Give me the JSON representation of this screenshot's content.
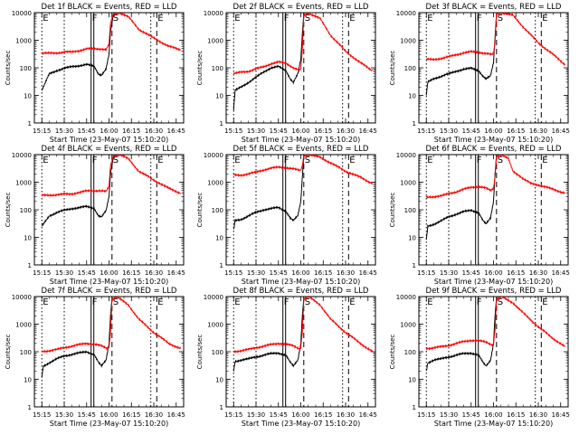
{
  "common": {
    "xlabel": "Start Time (23-May-07 15:10:20)",
    "ylabel": "Counts/sec",
    "x_ticks": [
      "15:15",
      "15:30",
      "15:45",
      "16:00",
      "16:15",
      "16:30",
      "16:45"
    ],
    "x_tick_minutes": [
      0,
      15,
      30,
      45,
      60,
      75,
      90
    ],
    "x_range_minutes": [
      -5,
      95
    ],
    "y_ticks": [
      "1",
      "10",
      "100",
      "1000",
      "10000"
    ],
    "y_scale": "log",
    "y_range": [
      1,
      10000
    ],
    "colors": {
      "events": "#000000",
      "lld": "#ff0000"
    }
  },
  "chart_data": [
    {
      "type": "line",
      "title": "Det 1f BLACK = Events, RED = LLD",
      "markers": [
        {
          "label": "E",
          "minute": 0
        },
        {
          "label": "F",
          "minute": 33
        },
        {
          "label": "S",
          "minute": 47
        },
        {
          "label": "E",
          "minute": 77
        }
      ],
      "series": [
        {
          "name": "Events",
          "color": "#000000",
          "x": [
            0,
            5,
            10,
            15,
            20,
            25,
            30,
            35,
            38,
            40,
            43,
            45,
            46,
            48,
            52
          ],
          "y": [
            15,
            60,
            80,
            95,
            110,
            120,
            130,
            115,
            60,
            55,
            90,
            300,
            2000,
            9000,
            10000
          ]
        },
        {
          "name": "LLD",
          "color": "#ff0000",
          "x": [
            0,
            10,
            20,
            25,
            30,
            35,
            40,
            43,
            45,
            46,
            48,
            52,
            58,
            65,
            75,
            85,
            93
          ],
          "y": [
            330,
            350,
            380,
            420,
            480,
            500,
            480,
            450,
            700,
            4000,
            9000,
            10000,
            7000,
            2500,
            1200,
            600,
            450
          ]
        }
      ]
    },
    {
      "type": "line",
      "title": "Det 2f BLACK = Events, RED = LLD",
      "markers": [
        {
          "label": "E",
          "minute": 0
        },
        {
          "label": "F",
          "minute": 33
        },
        {
          "label": "S",
          "minute": 47
        },
        {
          "label": "E",
          "minute": 77
        }
      ],
      "series": [
        {
          "name": "Events",
          "color": "#000000",
          "x": [
            0,
            1,
            5,
            10,
            15,
            20,
            25,
            30,
            35,
            38,
            40,
            43,
            45,
            46,
            47
          ],
          "y": [
            3,
            15,
            20,
            30,
            45,
            70,
            100,
            110,
            80,
            40,
            30,
            60,
            200,
            1500,
            9000
          ]
        },
        {
          "name": "LLD",
          "color": "#ff0000",
          "x": [
            0,
            5,
            10,
            15,
            20,
            25,
            30,
            35,
            40,
            44,
            45,
            46,
            47,
            50,
            58,
            65,
            75,
            85,
            93
          ],
          "y": [
            60,
            70,
            75,
            90,
            110,
            140,
            160,
            150,
            100,
            80,
            90,
            400,
            8000,
            10000,
            6000,
            1500,
            400,
            150,
            80
          ]
        }
      ]
    },
    {
      "type": "line",
      "title": "Det 3f BLACK = Events, RED = LLD",
      "markers": [
        {
          "label": "E",
          "minute": 0
        },
        {
          "label": "F",
          "minute": 33
        },
        {
          "label": "S",
          "minute": 47
        },
        {
          "label": "E",
          "minute": 77
        }
      ],
      "series": [
        {
          "name": "Events",
          "color": "#000000",
          "x": [
            0,
            1,
            5,
            10,
            15,
            20,
            25,
            30,
            35,
            38,
            40,
            43,
            45,
            46,
            47
          ],
          "y": [
            10,
            30,
            40,
            50,
            60,
            75,
            90,
            95,
            80,
            50,
            40,
            50,
            150,
            1200,
            9000
          ]
        },
        {
          "name": "LLD",
          "color": "#ff0000",
          "x": [
            0,
            5,
            10,
            15,
            20,
            25,
            30,
            35,
            40,
            44,
            45,
            46,
            47,
            50,
            58,
            65,
            75,
            85,
            93
          ],
          "y": [
            200,
            200,
            220,
            250,
            300,
            350,
            380,
            370,
            330,
            300,
            320,
            800,
            9000,
            10000,
            8000,
            3000,
            800,
            300,
            130
          ]
        }
      ]
    },
    {
      "type": "line",
      "title": "Det 4f BLACK = Events, RED = LLD",
      "markers": [
        {
          "label": "E",
          "minute": 0
        },
        {
          "label": "F",
          "minute": 33
        },
        {
          "label": "S",
          "minute": 47
        },
        {
          "label": "E",
          "minute": 77
        }
      ],
      "series": [
        {
          "name": "Events",
          "color": "#000000",
          "x": [
            0,
            5,
            10,
            15,
            20,
            25,
            30,
            35,
            38,
            40,
            43,
            45,
            46,
            48,
            52
          ],
          "y": [
            25,
            60,
            80,
            95,
            110,
            120,
            130,
            115,
            60,
            55,
            90,
            300,
            2000,
            9000,
            10000
          ]
        },
        {
          "name": "LLD",
          "color": "#ff0000",
          "x": [
            0,
            10,
            20,
            25,
            30,
            35,
            40,
            43,
            45,
            46,
            48,
            52,
            58,
            65,
            75,
            85,
            93
          ],
          "y": [
            330,
            350,
            380,
            420,
            480,
            500,
            480,
            450,
            700,
            4000,
            9000,
            10000,
            7000,
            2500,
            1200,
            600,
            400
          ]
        }
      ]
    },
    {
      "type": "line",
      "title": "Det 5f BLACK = Events, RED = LLD",
      "markers": [
        {
          "label": "E",
          "minute": 0
        },
        {
          "label": "F",
          "minute": 33
        },
        {
          "label": "S",
          "minute": 47
        },
        {
          "label": "E",
          "minute": 77
        }
      ],
      "series": [
        {
          "name": "Events",
          "color": "#000000",
          "x": [
            0,
            1,
            5,
            10,
            15,
            20,
            25,
            30,
            35,
            38,
            40,
            43,
            45,
            46,
            47
          ],
          "y": [
            18,
            40,
            45,
            60,
            80,
            100,
            110,
            120,
            90,
            50,
            40,
            60,
            200,
            1500,
            9000
          ]
        },
        {
          "name": "LLD",
          "color": "#ff0000",
          "x": [
            0,
            5,
            10,
            15,
            20,
            25,
            30,
            35,
            40,
            44,
            45,
            46,
            47,
            50,
            58,
            65,
            75,
            85,
            93
          ],
          "y": [
            1800,
            1800,
            2000,
            2300,
            2800,
            3200,
            3500,
            3400,
            3000,
            2700,
            2800,
            4000,
            9000,
            10000,
            8000,
            5000,
            2500,
            1500,
            900
          ]
        }
      ]
    },
    {
      "type": "line",
      "title": "Det 6f BLACK = Events, RED = LLD",
      "markers": [
        {
          "label": "E",
          "minute": 0
        },
        {
          "label": "F",
          "minute": 33
        },
        {
          "label": "S",
          "minute": 47
        },
        {
          "label": "E",
          "minute": 77
        }
      ],
      "series": [
        {
          "name": "Events",
          "color": "#000000",
          "x": [
            0,
            1,
            5,
            10,
            15,
            20,
            25,
            30,
            35,
            38,
            40,
            43,
            45,
            46,
            47
          ],
          "y": [
            8,
            25,
            30,
            40,
            55,
            70,
            85,
            95,
            80,
            40,
            30,
            50,
            200,
            2000,
            9000
          ]
        },
        {
          "name": "LLD",
          "color": "#ff0000",
          "x": [
            0,
            5,
            10,
            15,
            20,
            25,
            30,
            35,
            40,
            43,
            45,
            46,
            47,
            50,
            55,
            58,
            62,
            65,
            70,
            75,
            85,
            93
          ],
          "y": [
            280,
            300,
            320,
            380,
            450,
            550,
            650,
            700,
            600,
            500,
            600,
            1500,
            9000,
            10000,
            7000,
            2500,
            1800,
            1300,
            900,
            800,
            550,
            400
          ]
        }
      ]
    },
    {
      "type": "line",
      "title": "Det 7f BLACK = Events, RED = LLD",
      "markers": [
        {
          "label": "E",
          "minute": 0
        },
        {
          "label": "F",
          "minute": 33
        },
        {
          "label": "S",
          "minute": 47
        },
        {
          "label": "E",
          "minute": 77
        }
      ],
      "series": [
        {
          "name": "Events",
          "color": "#000000",
          "x": [
            0,
            1,
            5,
            10,
            15,
            20,
            25,
            30,
            35,
            38,
            40,
            43,
            45,
            46,
            47
          ],
          "y": [
            12,
            30,
            40,
            55,
            70,
            80,
            90,
            100,
            80,
            40,
            30,
            50,
            200,
            2000,
            9000
          ]
        },
        {
          "name": "LLD",
          "color": "#ff0000",
          "x": [
            0,
            5,
            10,
            15,
            20,
            25,
            30,
            35,
            40,
            44,
            45,
            46,
            47,
            50,
            58,
            65,
            75,
            85,
            93
          ],
          "y": [
            100,
            110,
            120,
            140,
            160,
            180,
            200,
            190,
            160,
            130,
            150,
            500,
            8000,
            10000,
            5000,
            1500,
            500,
            200,
            130
          ]
        }
      ]
    },
    {
      "type": "line",
      "title": "Det 8f BLACK = Events, RED = LLD",
      "markers": [
        {
          "label": "E",
          "minute": 0
        },
        {
          "label": "F",
          "minute": 33
        },
        {
          "label": "S",
          "minute": 47
        },
        {
          "label": "E",
          "minute": 77
        }
      ],
      "series": [
        {
          "name": "Events",
          "color": "#000000",
          "x": [
            0,
            1,
            5,
            10,
            15,
            20,
            25,
            30,
            35,
            38,
            40,
            43,
            45,
            46,
            47
          ],
          "y": [
            20,
            45,
            50,
            55,
            65,
            75,
            85,
            90,
            75,
            40,
            30,
            50,
            200,
            2000,
            9000
          ]
        },
        {
          "name": "LLD",
          "color": "#ff0000",
          "x": [
            0,
            5,
            10,
            15,
            20,
            25,
            30,
            35,
            40,
            44,
            45,
            46,
            47,
            50,
            58,
            65,
            75,
            85,
            93
          ],
          "y": [
            100,
            110,
            120,
            140,
            160,
            180,
            200,
            190,
            160,
            130,
            150,
            500,
            8000,
            10000,
            5000,
            1500,
            500,
            200,
            100
          ]
        }
      ]
    },
    {
      "type": "line",
      "title": "Det 9f BLACK = Events, RED = LLD",
      "markers": [
        {
          "label": "E",
          "minute": 0
        },
        {
          "label": "F",
          "minute": 33
        },
        {
          "label": "S",
          "minute": 47
        },
        {
          "label": "E",
          "minute": 77
        }
      ],
      "series": [
        {
          "name": "Events",
          "color": "#000000",
          "x": [
            0,
            1,
            5,
            10,
            15,
            20,
            25,
            30,
            35,
            38,
            40,
            43,
            45,
            46,
            47
          ],
          "y": [
            20,
            40,
            50,
            55,
            65,
            75,
            85,
            90,
            75,
            40,
            30,
            50,
            200,
            2000,
            9000
          ]
        },
        {
          "name": "LLD",
          "color": "#ff0000",
          "x": [
            0,
            5,
            10,
            15,
            20,
            25,
            30,
            35,
            40,
            44,
            45,
            46,
            47,
            50,
            58,
            65,
            75,
            85,
            93
          ],
          "y": [
            130,
            140,
            150,
            170,
            200,
            230,
            260,
            250,
            220,
            180,
            200,
            600,
            8000,
            10000,
            6000,
            2500,
            800,
            300,
            150
          ]
        }
      ]
    }
  ]
}
